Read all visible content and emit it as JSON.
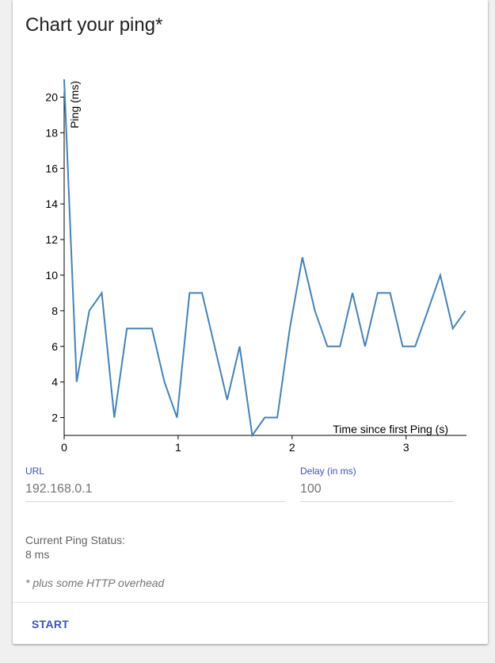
{
  "title": "Chart your ping*",
  "form": {
    "url_label": "URL",
    "url_value": "192.168.0.1",
    "delay_label": "Delay (in ms)",
    "delay_value": "100"
  },
  "status": {
    "label": "Current Ping Status:",
    "value": "8 ms"
  },
  "footnote": "* plus some HTTP overhead",
  "actions": {
    "start_label": "START"
  },
  "colors": {
    "line": "#4682b4",
    "accent": "#3f51b5"
  },
  "chart_data": {
    "type": "line",
    "title": "",
    "xlabel": "Time since first Ping (s)",
    "ylabel": "Ping (ms)",
    "xlim": [
      0,
      3.53
    ],
    "ylim": [
      1,
      21
    ],
    "x_ticks": [
      0,
      1,
      2,
      3
    ],
    "y_ticks": [
      2,
      4,
      6,
      8,
      10,
      12,
      14,
      16,
      18,
      20
    ],
    "grid": false,
    "series": [
      {
        "x": [
          0,
          0.11,
          0.22,
          0.33,
          0.44,
          0.55,
          0.66,
          0.77,
          0.88,
          0.99,
          1.1,
          1.21,
          1.32,
          1.43,
          1.54,
          1.65,
          1.76,
          1.87,
          1.98,
          2.09,
          2.2,
          2.31,
          2.42,
          2.53,
          2.64,
          2.75,
          2.86,
          2.97,
          3.08,
          3.19,
          3.3,
          3.41,
          3.52
        ],
        "y": [
          21,
          4,
          8,
          9,
          2,
          7,
          7,
          7,
          4,
          2,
          9,
          9,
          6,
          3,
          6,
          1,
          2,
          2,
          7,
          11,
          8,
          6,
          6,
          9,
          6,
          9,
          9,
          6,
          6,
          8,
          10,
          7,
          8
        ]
      }
    ]
  }
}
